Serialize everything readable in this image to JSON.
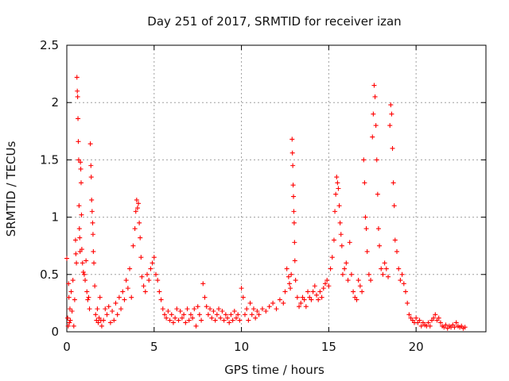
{
  "chart_data": {
    "type": "scatter",
    "title": "Day 251 of 2017, SRMTID for receiver izan",
    "xlabel": "GPS time / hours",
    "ylabel": "SRMTID / TECUs",
    "xlim": [
      0,
      24
    ],
    "ylim": [
      0,
      2.5
    ],
    "xticks": [
      0,
      5,
      10,
      15,
      20
    ],
    "xtick_labels": [
      "0",
      "5",
      "10",
      "15",
      "20"
    ],
    "yticks": [
      0,
      0.5,
      1,
      1.5,
      2,
      2.5
    ],
    "ytick_labels": [
      "0",
      "0.5",
      "1",
      "1.5",
      "2",
      "2.5"
    ],
    "grid": true,
    "marker": "+",
    "marker_color": "#ff0000",
    "series": [
      {
        "name": "SRMTID",
        "points": [
          [
            0.0,
            0.64
          ],
          [
            0.05,
            0.12
          ],
          [
            0.08,
            0.05
          ],
          [
            0.1,
            0.42
          ],
          [
            0.12,
            0.3
          ],
          [
            0.15,
            0.08
          ],
          [
            0.18,
            0.2
          ],
          [
            0.2,
            0.1
          ],
          [
            0.25,
            0.35
          ],
          [
            0.3,
            0.18
          ],
          [
            0.35,
            0.45
          ],
          [
            0.4,
            0.05
          ],
          [
            0.45,
            0.28
          ],
          [
            0.5,
            0.8
          ],
          [
            0.52,
            0.68
          ],
          [
            0.55,
            0.6
          ],
          [
            0.58,
            2.22
          ],
          [
            0.6,
            2.1
          ],
          [
            0.62,
            2.05
          ],
          [
            0.64,
            1.86
          ],
          [
            0.66,
            1.66
          ],
          [
            0.68,
            1.5
          ],
          [
            0.7,
            1.1
          ],
          [
            0.72,
            0.9
          ],
          [
            0.74,
            0.82
          ],
          [
            0.76,
            0.7
          ],
          [
            0.78,
            1.48
          ],
          [
            0.8,
            1.42
          ],
          [
            0.82,
            1.3
          ],
          [
            0.84,
            1.02
          ],
          [
            0.86,
            0.72
          ],
          [
            0.9,
            0.6
          ],
          [
            0.95,
            0.52
          ],
          [
            1.0,
            0.5
          ],
          [
            1.05,
            0.45
          ],
          [
            1.1,
            0.62
          ],
          [
            1.15,
            0.35
          ],
          [
            1.2,
            0.28
          ],
          [
            1.25,
            0.3
          ],
          [
            1.3,
            0.2
          ],
          [
            1.35,
            1.64
          ],
          [
            1.38,
            1.45
          ],
          [
            1.4,
            1.35
          ],
          [
            1.42,
            1.15
          ],
          [
            1.45,
            1.05
          ],
          [
            1.48,
            0.95
          ],
          [
            1.5,
            0.85
          ],
          [
            1.52,
            0.7
          ],
          [
            1.55,
            0.6
          ],
          [
            1.6,
            0.4
          ],
          [
            1.65,
            0.15
          ],
          [
            1.7,
            0.1
          ],
          [
            1.75,
            0.2
          ],
          [
            1.8,
            0.08
          ],
          [
            1.85,
            0.12
          ],
          [
            1.9,
            0.3
          ],
          [
            1.95,
            0.1
          ],
          [
            2.0,
            0.05
          ],
          [
            2.1,
            0.1
          ],
          [
            2.2,
            0.2
          ],
          [
            2.3,
            0.15
          ],
          [
            2.4,
            0.22
          ],
          [
            2.5,
            0.08
          ],
          [
            2.6,
            0.18
          ],
          [
            2.7,
            0.1
          ],
          [
            2.8,
            0.25
          ],
          [
            2.9,
            0.15
          ],
          [
            3.0,
            0.3
          ],
          [
            3.1,
            0.2
          ],
          [
            3.2,
            0.35
          ],
          [
            3.3,
            0.28
          ],
          [
            3.4,
            0.45
          ],
          [
            3.5,
            0.38
          ],
          [
            3.6,
            0.55
          ],
          [
            3.7,
            0.3
          ],
          [
            3.8,
            0.75
          ],
          [
            3.9,
            0.9
          ],
          [
            3.95,
            1.05
          ],
          [
            4.0,
            1.15
          ],
          [
            4.05,
            1.08
          ],
          [
            4.1,
            1.12
          ],
          [
            4.15,
            0.95
          ],
          [
            4.2,
            0.82
          ],
          [
            4.25,
            0.65
          ],
          [
            4.3,
            0.48
          ],
          [
            4.4,
            0.4
          ],
          [
            4.5,
            0.35
          ],
          [
            4.6,
            0.5
          ],
          [
            4.7,
            0.45
          ],
          [
            4.8,
            0.55
          ],
          [
            4.9,
            0.6
          ],
          [
            5.0,
            0.65
          ],
          [
            5.1,
            0.5
          ],
          [
            5.2,
            0.45
          ],
          [
            5.3,
            0.35
          ],
          [
            5.4,
            0.28
          ],
          [
            5.5,
            0.2
          ],
          [
            5.6,
            0.15
          ],
          [
            5.7,
            0.12
          ],
          [
            5.8,
            0.18
          ],
          [
            5.9,
            0.1
          ],
          [
            6.0,
            0.15
          ],
          [
            6.1,
            0.08
          ],
          [
            6.2,
            0.12
          ],
          [
            6.3,
            0.2
          ],
          [
            6.4,
            0.1
          ],
          [
            6.5,
            0.18
          ],
          [
            6.6,
            0.12
          ],
          [
            6.7,
            0.15
          ],
          [
            6.8,
            0.08
          ],
          [
            6.9,
            0.2
          ],
          [
            7.0,
            0.1
          ],
          [
            7.1,
            0.15
          ],
          [
            7.2,
            0.12
          ],
          [
            7.3,
            0.2
          ],
          [
            7.4,
            0.05
          ],
          [
            7.5,
            0.22
          ],
          [
            7.6,
            0.15
          ],
          [
            7.7,
            0.1
          ],
          [
            7.8,
            0.42
          ],
          [
            7.9,
            0.3
          ],
          [
            8.0,
            0.22
          ],
          [
            8.1,
            0.15
          ],
          [
            8.2,
            0.2
          ],
          [
            8.3,
            0.12
          ],
          [
            8.4,
            0.18
          ],
          [
            8.5,
            0.1
          ],
          [
            8.6,
            0.15
          ],
          [
            8.7,
            0.2
          ],
          [
            8.8,
            0.12
          ],
          [
            8.9,
            0.18
          ],
          [
            9.0,
            0.1
          ],
          [
            9.1,
            0.15
          ],
          [
            9.2,
            0.12
          ],
          [
            9.3,
            0.08
          ],
          [
            9.4,
            0.15
          ],
          [
            9.5,
            0.1
          ],
          [
            9.6,
            0.18
          ],
          [
            9.7,
            0.12
          ],
          [
            9.8,
            0.15
          ],
          [
            9.9,
            0.1
          ],
          [
            10.0,
            0.38
          ],
          [
            10.1,
            0.3
          ],
          [
            10.2,
            0.15
          ],
          [
            10.3,
            0.2
          ],
          [
            10.4,
            0.1
          ],
          [
            10.5,
            0.25
          ],
          [
            10.6,
            0.15
          ],
          [
            10.7,
            0.2
          ],
          [
            10.8,
            0.12
          ],
          [
            10.9,
            0.18
          ],
          [
            11.0,
            0.15
          ],
          [
            11.2,
            0.2
          ],
          [
            11.4,
            0.18
          ],
          [
            11.6,
            0.22
          ],
          [
            11.8,
            0.25
          ],
          [
            12.0,
            0.2
          ],
          [
            12.2,
            0.28
          ],
          [
            12.4,
            0.25
          ],
          [
            12.5,
            0.35
          ],
          [
            12.6,
            0.55
          ],
          [
            12.7,
            0.48
          ],
          [
            12.75,
            0.42
          ],
          [
            12.8,
            0.38
          ],
          [
            12.85,
            0.5
          ],
          [
            12.9,
            1.68
          ],
          [
            12.92,
            1.56
          ],
          [
            12.94,
            1.45
          ],
          [
            12.96,
            1.28
          ],
          [
            12.98,
            1.18
          ],
          [
            13.0,
            1.05
          ],
          [
            13.02,
            0.95
          ],
          [
            13.04,
            0.78
          ],
          [
            13.06,
            0.62
          ],
          [
            13.1,
            0.45
          ],
          [
            13.2,
            0.3
          ],
          [
            13.3,
            0.22
          ],
          [
            13.4,
            0.25
          ],
          [
            13.5,
            0.3
          ],
          [
            13.6,
            0.28
          ],
          [
            13.7,
            0.22
          ],
          [
            13.8,
            0.35
          ],
          [
            13.9,
            0.3
          ],
          [
            14.0,
            0.28
          ],
          [
            14.1,
            0.35
          ],
          [
            14.2,
            0.4
          ],
          [
            14.3,
            0.32
          ],
          [
            14.4,
            0.28
          ],
          [
            14.5,
            0.35
          ],
          [
            14.6,
            0.3
          ],
          [
            14.7,
            0.38
          ],
          [
            14.8,
            0.42
          ],
          [
            14.9,
            0.45
          ],
          [
            15.0,
            0.4
          ],
          [
            15.1,
            0.55
          ],
          [
            15.2,
            0.65
          ],
          [
            15.3,
            0.8
          ],
          [
            15.35,
            1.05
          ],
          [
            15.4,
            1.2
          ],
          [
            15.45,
            1.35
          ],
          [
            15.5,
            1.3
          ],
          [
            15.55,
            1.25
          ],
          [
            15.6,
            1.1
          ],
          [
            15.65,
            0.95
          ],
          [
            15.7,
            0.85
          ],
          [
            15.75,
            0.75
          ],
          [
            15.8,
            0.5
          ],
          [
            15.9,
            0.55
          ],
          [
            16.0,
            0.6
          ],
          [
            16.1,
            0.45
          ],
          [
            16.2,
            0.78
          ],
          [
            16.3,
            0.5
          ],
          [
            16.4,
            0.35
          ],
          [
            16.5,
            0.3
          ],
          [
            16.6,
            0.28
          ],
          [
            16.7,
            0.45
          ],
          [
            16.8,
            0.4
          ],
          [
            16.9,
            0.35
          ],
          [
            17.0,
            1.5
          ],
          [
            17.05,
            1.3
          ],
          [
            17.1,
            1.0
          ],
          [
            17.15,
            0.9
          ],
          [
            17.2,
            0.7
          ],
          [
            17.3,
            0.5
          ],
          [
            17.4,
            0.45
          ],
          [
            17.5,
            1.7
          ],
          [
            17.55,
            1.9
          ],
          [
            17.6,
            2.15
          ],
          [
            17.65,
            2.05
          ],
          [
            17.7,
            1.8
          ],
          [
            17.75,
            1.5
          ],
          [
            17.8,
            1.2
          ],
          [
            17.85,
            0.9
          ],
          [
            17.9,
            0.75
          ],
          [
            18.0,
            0.55
          ],
          [
            18.1,
            0.5
          ],
          [
            18.2,
            0.6
          ],
          [
            18.3,
            0.55
          ],
          [
            18.4,
            0.48
          ],
          [
            18.5,
            1.8
          ],
          [
            18.55,
            1.98
          ],
          [
            18.6,
            1.9
          ],
          [
            18.65,
            1.6
          ],
          [
            18.7,
            1.3
          ],
          [
            18.75,
            1.1
          ],
          [
            18.8,
            0.8
          ],
          [
            18.9,
            0.7
          ],
          [
            19.0,
            0.55
          ],
          [
            19.1,
            0.45
          ],
          [
            19.2,
            0.5
          ],
          [
            19.3,
            0.42
          ],
          [
            19.4,
            0.35
          ],
          [
            19.5,
            0.25
          ],
          [
            19.6,
            0.15
          ],
          [
            19.7,
            0.12
          ],
          [
            19.8,
            0.1
          ],
          [
            19.9,
            0.08
          ],
          [
            20.0,
            0.12
          ],
          [
            20.1,
            0.08
          ],
          [
            20.2,
            0.1
          ],
          [
            20.3,
            0.05
          ],
          [
            20.4,
            0.08
          ],
          [
            20.5,
            0.06
          ],
          [
            20.6,
            0.05
          ],
          [
            20.7,
            0.08
          ],
          [
            20.8,
            0.05
          ],
          [
            20.9,
            0.1
          ],
          [
            21.0,
            0.12
          ],
          [
            21.1,
            0.15
          ],
          [
            21.2,
            0.1
          ],
          [
            21.3,
            0.12
          ],
          [
            21.4,
            0.08
          ],
          [
            21.5,
            0.05
          ],
          [
            21.6,
            0.04
          ],
          [
            21.7,
            0.06
          ],
          [
            21.8,
            0.03
          ],
          [
            21.9,
            0.05
          ],
          [
            22.0,
            0.04
          ],
          [
            22.1,
            0.06
          ],
          [
            22.2,
            0.04
          ],
          [
            22.3,
            0.08
          ],
          [
            22.4,
            0.05
          ],
          [
            22.5,
            0.04
          ],
          [
            22.6,
            0.05
          ],
          [
            22.7,
            0.03
          ],
          [
            22.8,
            0.04
          ]
        ]
      }
    ]
  }
}
